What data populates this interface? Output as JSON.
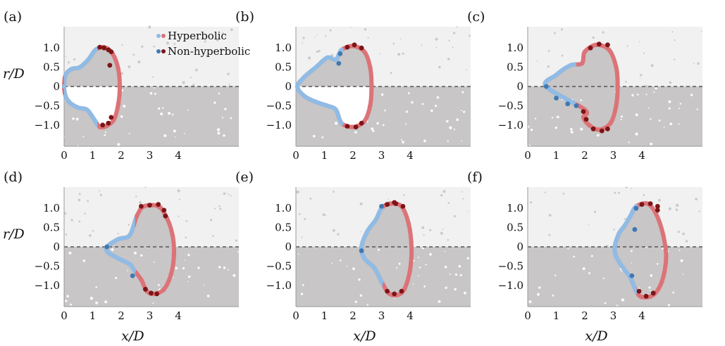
{
  "figure": {
    "x_axis_label": "x/D",
    "y_axis_label": "r/D",
    "x_ticks": [
      "0",
      "1",
      "2",
      "3",
      "4"
    ],
    "y_ticks": [
      "1.0",
      "0.5",
      "0",
      "−0.5",
      "−1.0"
    ],
    "legend": [
      "Hyperbolic",
      "Non-hyperbolic"
    ]
  },
  "colors": {
    "background_gray": "#c8c6c6",
    "hyperbolic_red": "#dc7378",
    "hyperbolic_blue": "#8fbce6",
    "nonhyperbolic_darkred": "#7d1416",
    "nonhyperbolic_blue": "#3f78b3"
  },
  "chart_data": [
    {
      "panel": "(a)",
      "type": "scatter",
      "xlim": [
        0,
        5
      ],
      "ylim": [
        -1.5,
        1.5
      ],
      "series": [
        {
          "name": "Hyperbolic",
          "shape": "closed",
          "points": [
            [
              0,
              0
            ],
            [
              0.05,
              0.3
            ],
            [
              0.25,
              0.45
            ],
            [
              0.55,
              0.5
            ],
            [
              0.85,
              0.7
            ],
            [
              1.1,
              0.95
            ],
            [
              1.4,
              1.02
            ],
            [
              1.7,
              0.85
            ],
            [
              1.9,
              0.45
            ],
            [
              1.95,
              0
            ],
            [
              1.9,
              -0.45
            ],
            [
              1.75,
              -0.85
            ],
            [
              1.5,
              -1.02
            ],
            [
              1.25,
              -1.05
            ],
            [
              1.05,
              -0.85
            ],
            [
              0.8,
              -0.6
            ],
            [
              0.5,
              -0.55
            ],
            [
              0.2,
              -0.42
            ],
            [
              0.05,
              -0.25
            ]
          ]
        },
        {
          "name": "Non-hyperbolic",
          "points": [
            [
              1.25,
              1.02
            ],
            [
              1.4,
              1.0
            ],
            [
              1.55,
              0.95
            ],
            [
              1.6,
              0.55
            ],
            [
              1.65,
              0.9
            ],
            [
              1.35,
              -1.0
            ],
            [
              1.55,
              -0.95
            ],
            [
              1.65,
              -0.8
            ]
          ]
        }
      ]
    },
    {
      "panel": "(b)",
      "type": "scatter",
      "xlim": [
        0,
        5
      ],
      "ylim": [
        -1.5,
        1.5
      ],
      "series": [
        {
          "name": "Hyperbolic",
          "shape": "closed",
          "points": [
            [
              0.05,
              0
            ],
            [
              0.3,
              0.25
            ],
            [
              0.7,
              0.5
            ],
            [
              1.1,
              0.75
            ],
            [
              1.4,
              0.7
            ],
            [
              1.6,
              0.95
            ],
            [
              2.0,
              1.05
            ],
            [
              2.4,
              0.9
            ],
            [
              2.6,
              0.5
            ],
            [
              2.65,
              0
            ],
            [
              2.6,
              -0.5
            ],
            [
              2.4,
              -0.9
            ],
            [
              2.0,
              -1.05
            ],
            [
              1.6,
              -0.95
            ],
            [
              1.4,
              -0.6
            ],
            [
              1.1,
              -0.5
            ],
            [
              0.7,
              -0.4
            ],
            [
              0.3,
              -0.25
            ]
          ]
        },
        {
          "name": "Non-hyperbolic",
          "points": [
            [
              1.8,
              1.02
            ],
            [
              2.05,
              1.08
            ],
            [
              2.3,
              1.0
            ],
            [
              1.5,
              0.6
            ],
            [
              1.55,
              0.85
            ],
            [
              1.8,
              -1.03
            ],
            [
              2.1,
              -1.05
            ],
            [
              2.3,
              -0.95
            ]
          ]
        }
      ]
    },
    {
      "panel": "(c)",
      "type": "scatter",
      "xlim": [
        0,
        5
      ],
      "ylim": [
        -1.5,
        1.5
      ],
      "series": [
        {
          "name": "Hyperbolic",
          "shape": "closed",
          "points": [
            [
              0.65,
              0
            ],
            [
              1.0,
              0.3
            ],
            [
              1.5,
              0.55
            ],
            [
              1.9,
              0.6
            ],
            [
              2.0,
              0.9
            ],
            [
              2.4,
              1.08
            ],
            [
              2.85,
              0.95
            ],
            [
              3.1,
              0.5
            ],
            [
              3.15,
              0
            ],
            [
              3.1,
              -0.5
            ],
            [
              2.9,
              -0.95
            ],
            [
              2.5,
              -1.12
            ],
            [
              2.15,
              -1.0
            ],
            [
              1.95,
              -0.8
            ],
            [
              2.0,
              -0.6
            ]
          ]
        },
        {
          "name": "Non-hyperbolic",
          "points": [
            [
              0.65,
              0
            ],
            [
              1.0,
              -0.3
            ],
            [
              1.4,
              -0.45
            ],
            [
              1.7,
              -0.5
            ],
            [
              2.2,
              1.0
            ],
            [
              2.5,
              1.1
            ],
            [
              2.8,
              1.08
            ],
            [
              2.3,
              -1.1
            ],
            [
              2.6,
              -1.15
            ],
            [
              2.8,
              -1.1
            ],
            [
              1.95,
              -0.65
            ],
            [
              2.05,
              -0.85
            ]
          ]
        }
      ]
    },
    {
      "panel": "(d)",
      "type": "scatter",
      "xlim": [
        0,
        5
      ],
      "ylim": [
        -1.5,
        1.5
      ],
      "series": [
        {
          "name": "Hyperbolic",
          "shape": "closed",
          "points": [
            [
              1.5,
              0
            ],
            [
              1.9,
              0.2
            ],
            [
              2.3,
              0.3
            ],
            [
              2.55,
              0.8
            ],
            [
              2.8,
              1.05
            ],
            [
              3.3,
              1.05
            ],
            [
              3.6,
              0.75
            ],
            [
              3.8,
              0.3
            ],
            [
              3.85,
              -0.2
            ],
            [
              3.75,
              -0.7
            ],
            [
              3.5,
              -1.1
            ],
            [
              3.15,
              -1.22
            ],
            [
              2.9,
              -1.15
            ],
            [
              2.7,
              -0.85
            ],
            [
              2.45,
              -0.6
            ],
            [
              2.3,
              -0.45
            ],
            [
              1.9,
              -0.3
            ],
            [
              1.55,
              -0.15
            ]
          ]
        },
        {
          "name": "Non-hyperbolic",
          "points": [
            [
              2.7,
              1.05
            ],
            [
              3.0,
              1.08
            ],
            [
              3.3,
              1.1
            ],
            [
              3.5,
              0.95
            ],
            [
              3.55,
              0.8
            ],
            [
              2.85,
              -1.1
            ],
            [
              3.05,
              -1.2
            ],
            [
              3.25,
              -1.22
            ],
            [
              2.4,
              -0.75
            ],
            [
              1.5,
              0
            ]
          ]
        }
      ]
    },
    {
      "panel": "(e)",
      "type": "scatter",
      "xlim": [
        0,
        5
      ],
      "ylim": [
        -1.5,
        1.5
      ],
      "series": [
        {
          "name": "Hyperbolic",
          "shape": "closed",
          "points": [
            [
              2.3,
              0
            ],
            [
              2.5,
              0.4
            ],
            [
              2.8,
              0.7
            ],
            [
              3.0,
              1.0
            ],
            [
              3.3,
              1.12
            ],
            [
              3.7,
              1.05
            ],
            [
              3.95,
              0.6
            ],
            [
              4.05,
              0
            ],
            [
              4.0,
              -0.6
            ],
            [
              3.8,
              -1.1
            ],
            [
              3.55,
              -1.25
            ],
            [
              3.25,
              -1.2
            ],
            [
              3.0,
              -0.9
            ],
            [
              2.75,
              -0.55
            ],
            [
              2.4,
              -0.3
            ]
          ]
        },
        {
          "name": "Non-hyperbolic",
          "points": [
            [
              3.2,
              1.1
            ],
            [
              3.5,
              1.12
            ],
            [
              3.75,
              1.05
            ],
            [
              3.45,
              1.15
            ],
            [
              3.2,
              -1.15
            ],
            [
              3.45,
              -1.22
            ],
            [
              3.7,
              -1.15
            ],
            [
              2.3,
              -0.1
            ],
            [
              3.0,
              1.05
            ]
          ]
        }
      ]
    },
    {
      "panel": "(f)",
      "type": "scatter",
      "xlim": [
        0,
        5
      ],
      "ylim": [
        -1.5,
        1.5
      ],
      "series": [
        {
          "name": "Hyperbolic",
          "shape": "closed",
          "points": [
            [
              3.05,
              0
            ],
            [
              3.2,
              0.35
            ],
            [
              3.4,
              0.55
            ],
            [
              3.6,
              0.8
            ],
            [
              3.8,
              1.05
            ],
            [
              4.2,
              1.12
            ],
            [
              4.5,
              0.85
            ],
            [
              4.75,
              0.3
            ],
            [
              4.85,
              -0.3
            ],
            [
              4.7,
              -0.9
            ],
            [
              4.4,
              -1.25
            ],
            [
              4.0,
              -1.3
            ],
            [
              3.8,
              -1.15
            ],
            [
              3.6,
              -0.8
            ],
            [
              3.3,
              -0.5
            ],
            [
              3.1,
              -0.25
            ]
          ]
        },
        {
          "name": "Non-hyperbolic",
          "points": [
            [
              3.8,
              1.0
            ],
            [
              4.0,
              1.1
            ],
            [
              4.3,
              1.12
            ],
            [
              4.55,
              1.05
            ],
            [
              3.75,
              0.45
            ],
            [
              3.9,
              -1.15
            ],
            [
              4.15,
              -1.28
            ],
            [
              4.4,
              -1.2
            ],
            [
              3.65,
              -0.75
            ],
            [
              4.55,
              0.95
            ]
          ]
        }
      ]
    }
  ]
}
